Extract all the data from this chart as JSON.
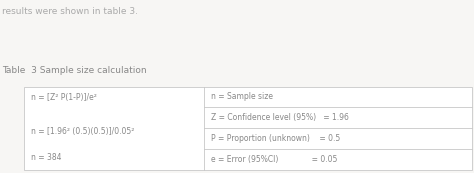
{
  "header_text": "Table  3 Sample size calculation",
  "pre_text": "results were shown in table 3.",
  "left_col": [
    "n = [Z² P(1-P)]/e²",
    "n = [1.96² (0.5)(0.5)]/0.05²",
    "n = 384"
  ],
  "right_col": [
    "n = Sample size",
    "Z = Confidence level (95%)   = 1.96",
    "P = Proportion (unknown)    = 0.5",
    "e = Error (95%CI)              = 0.05"
  ],
  "bg_color": "#f7f6f4",
  "table_bg": "#ffffff",
  "border_color": "#c8c8c8",
  "text_color": "#888888",
  "header_color": "#888888",
  "pre_text_color": "#aaaaaa",
  "font_size": 5.5,
  "header_font_size": 6.5,
  "pre_font_size": 6.5
}
